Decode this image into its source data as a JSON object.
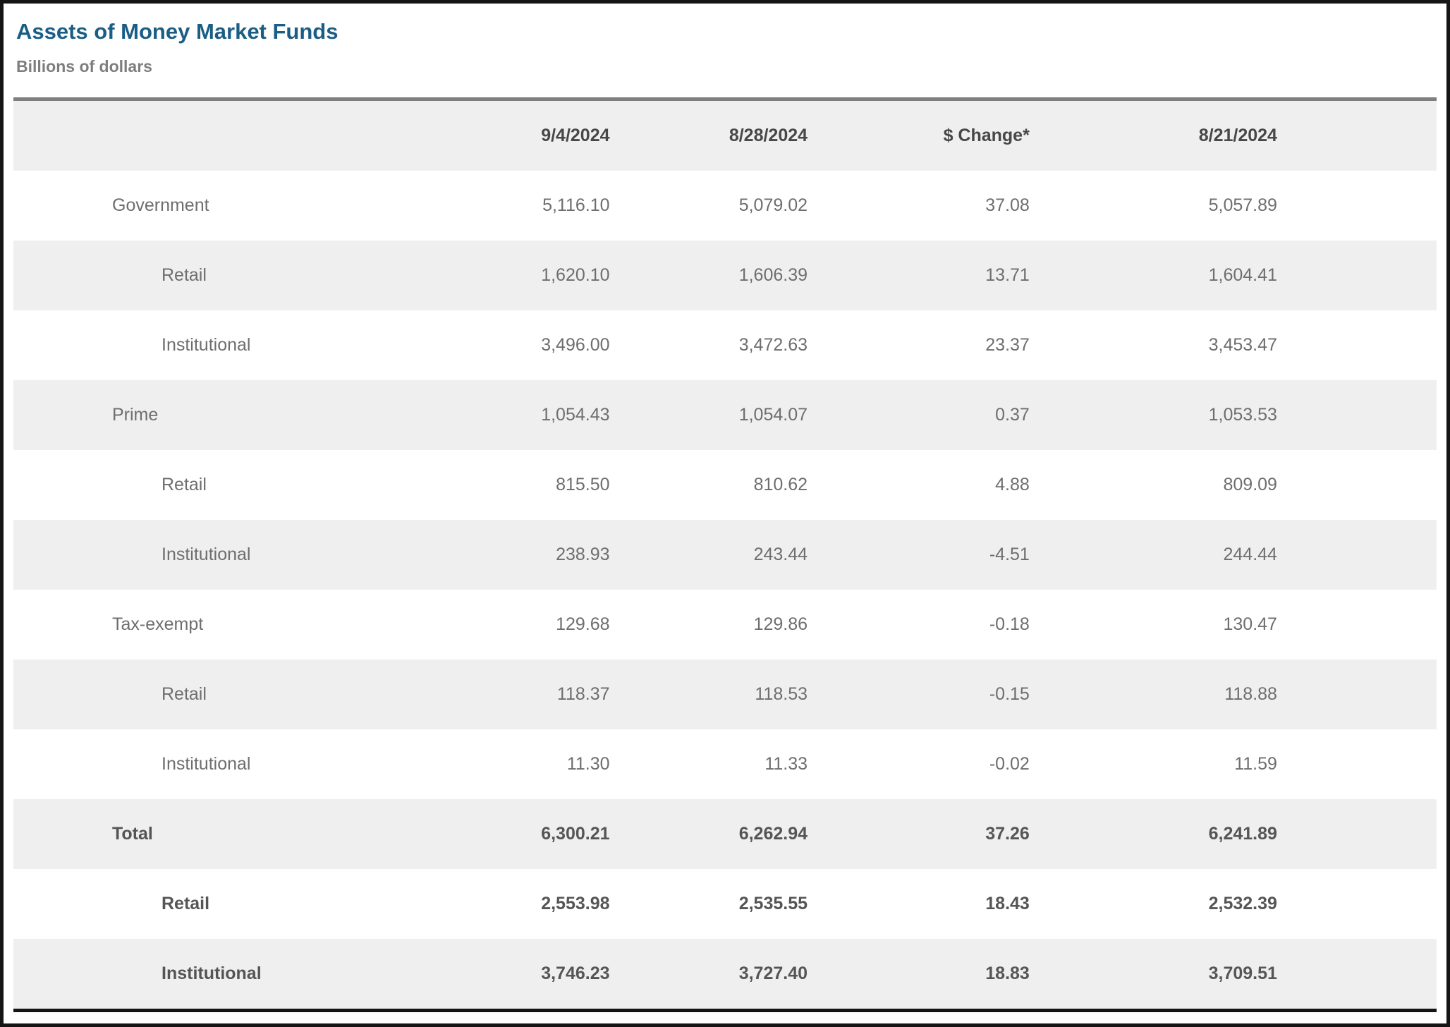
{
  "header": {
    "title": "Assets of Money Market Funds",
    "subtitle": "Billions of dollars"
  },
  "colors": {
    "title_blue": "#1b5e85",
    "subtitle_gray": "#7e7e7e",
    "stripe_gray": "#efefef",
    "table_top_rule": "#7f7f7f",
    "table_bottom_rule": "#141414",
    "cell_text": "#6e6e6e",
    "header_text": "#474747",
    "outer_frame": "#151515"
  },
  "chart_data": {
    "type": "table",
    "title": "Assets of Money Market Funds",
    "subtitle": "Billions of dollars",
    "columns": [
      "9/4/2024",
      "8/28/2024",
      "$ Change*",
      "8/21/2024"
    ],
    "rows": [
      {
        "label": "Government",
        "level": 0,
        "bold": false,
        "values": [
          "5,116.10",
          "5,079.02",
          "37.08",
          "5,057.89"
        ]
      },
      {
        "label": "Retail",
        "level": 1,
        "bold": false,
        "values": [
          "1,620.10",
          "1,606.39",
          "13.71",
          "1,604.41"
        ]
      },
      {
        "label": "Institutional",
        "level": 1,
        "bold": false,
        "values": [
          "3,496.00",
          "3,472.63",
          "23.37",
          "3,453.47"
        ]
      },
      {
        "label": "Prime",
        "level": 0,
        "bold": false,
        "values": [
          "1,054.43",
          "1,054.07",
          "0.37",
          "1,053.53"
        ]
      },
      {
        "label": "Retail",
        "level": 1,
        "bold": false,
        "values": [
          "815.50",
          "810.62",
          "4.88",
          "809.09"
        ]
      },
      {
        "label": "Institutional",
        "level": 1,
        "bold": false,
        "values": [
          "238.93",
          "243.44",
          "-4.51",
          "244.44"
        ]
      },
      {
        "label": "Tax-exempt",
        "level": 0,
        "bold": false,
        "values": [
          "129.68",
          "129.86",
          "-0.18",
          "130.47"
        ]
      },
      {
        "label": "Retail",
        "level": 1,
        "bold": false,
        "values": [
          "118.37",
          "118.53",
          "-0.15",
          "118.88"
        ]
      },
      {
        "label": "Institutional",
        "level": 1,
        "bold": false,
        "values": [
          "11.30",
          "11.33",
          "-0.02",
          "11.59"
        ]
      },
      {
        "label": "Total",
        "level": 0,
        "bold": true,
        "values": [
          "6,300.21",
          "6,262.94",
          "37.26",
          "6,241.89"
        ]
      },
      {
        "label": "Retail",
        "level": 1,
        "bold": true,
        "values": [
          "2,553.98",
          "2,535.55",
          "18.43",
          "2,532.39"
        ]
      },
      {
        "label": "Institutional",
        "level": 1,
        "bold": true,
        "values": [
          "3,746.23",
          "3,727.40",
          "18.83",
          "3,709.51"
        ]
      }
    ]
  }
}
